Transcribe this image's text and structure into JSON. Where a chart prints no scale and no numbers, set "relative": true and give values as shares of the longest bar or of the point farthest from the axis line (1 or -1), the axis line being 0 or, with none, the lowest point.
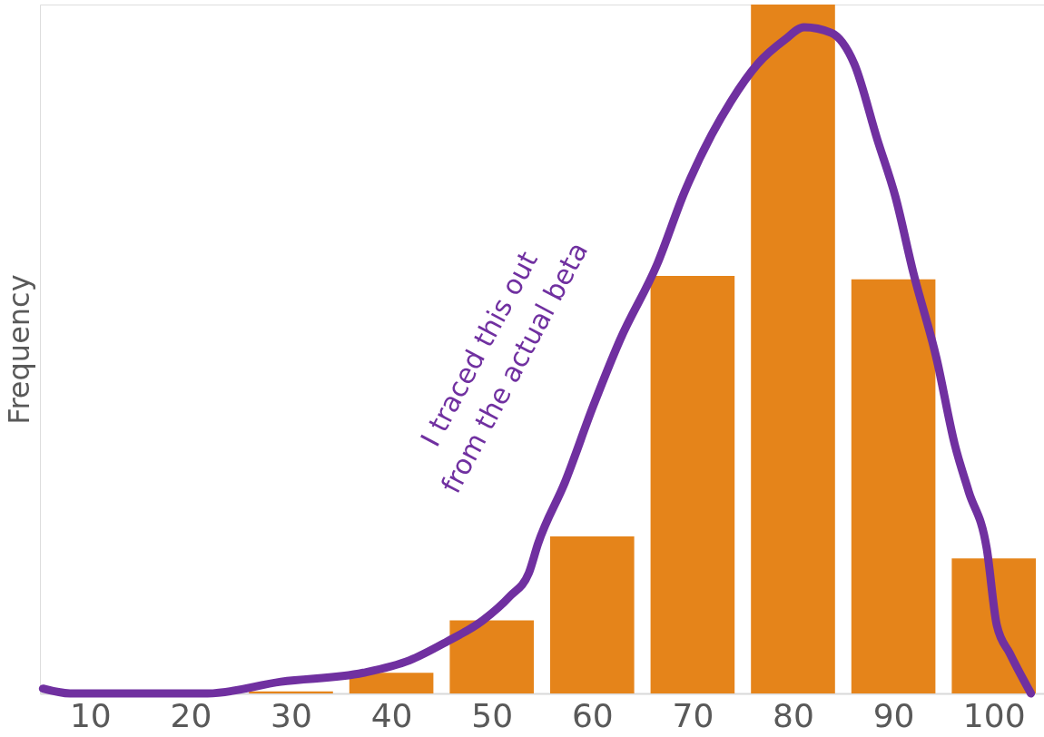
{
  "chart_data": {
    "type": "histogram",
    "ylabel": "Frequency",
    "relative": true,
    "bins": [
      5,
      15,
      25,
      35,
      45,
      55,
      65,
      75,
      85,
      95,
      105
    ],
    "values": [
      0,
      0,
      0.003,
      0.03,
      0.106,
      0.228,
      0.606,
      1,
      0.601,
      0.196
    ],
    "color": "#e5841a",
    "xlim": [
      5,
      105
    ],
    "xticks": [
      10,
      20,
      30,
      40,
      50,
      60,
      70,
      80,
      90,
      100
    ],
    "series": [
      {
        "type": "line",
        "color": "#7030a0",
        "x": [
          5.3,
          8.0,
          13.5,
          21.7,
          29.0,
          37.2,
          41.8,
          45.5,
          49.1,
          51.8,
          53.7,
          54.6,
          57.3,
          60.1,
          62.8,
          66.5,
          69.2,
          71.9,
          73.8,
          76.5,
          79.2,
          81.1,
          83.8,
          86.1,
          88.4,
          90.2,
          92.0,
          94.3,
          96.1,
          97.5,
          99.3,
          100.3,
          101.6,
          103.7
        ],
        "values": [
          0.007,
          0,
          0,
          0,
          0.017,
          0.03,
          0.048,
          0.075,
          0.106,
          0.141,
          0.175,
          0.217,
          0.307,
          0.417,
          0.514,
          0.624,
          0.728,
          0.811,
          0.859,
          0.914,
          0.949,
          0.967,
          0.959,
          0.914,
          0.804,
          0.721,
          0.61,
          0.486,
          0.362,
          0.293,
          0.21,
          0.099,
          0.058,
          0
        ]
      }
    ],
    "annotations": [
      "I traced this out\nfrom the actual beta"
    ]
  }
}
